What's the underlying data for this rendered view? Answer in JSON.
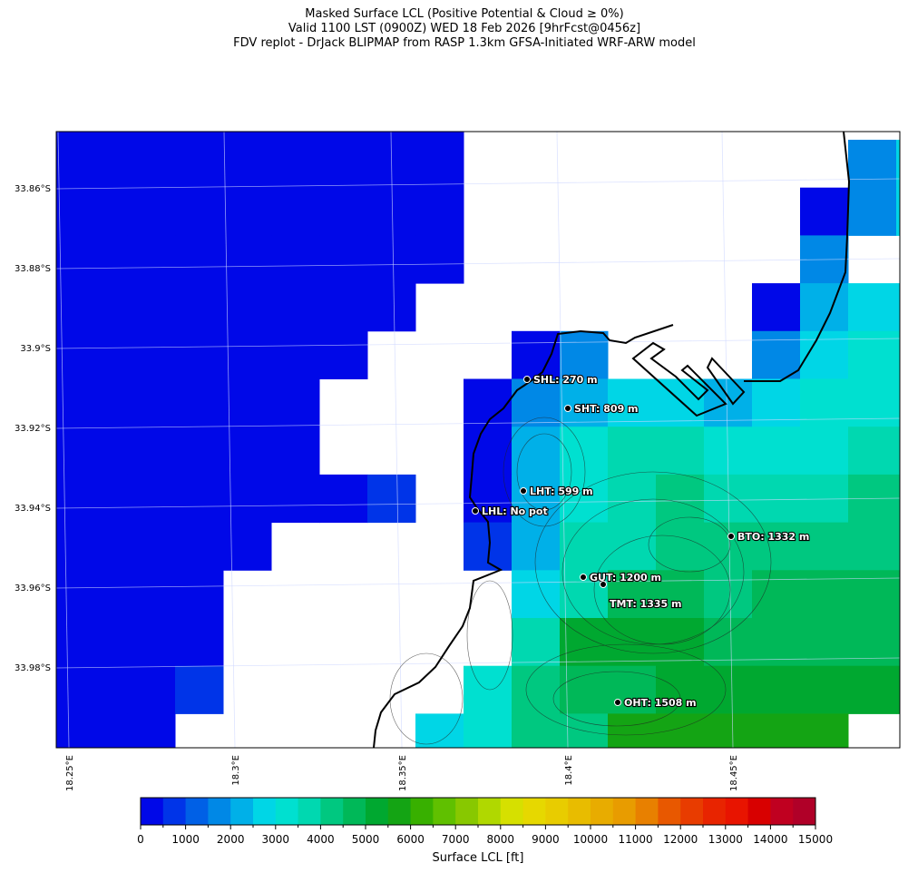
{
  "title": {
    "line1": "Masked Surface LCL (Positive Potential & Cloud ≥ 0%)",
    "line2": "Valid 1100 LST (0900Z) WED 18 Feb 2026 [9hrFcst@0456z]",
    "line3": "FDV replot - DrJack BLIPMAP from RASP 1.3km GFSA-Initiated WRF-ARW model"
  },
  "axes": {
    "lat_ticks": [
      "33.86°S",
      "33.88°S",
      "33.9°S",
      "33.92°S",
      "33.94°S",
      "33.96°S",
      "33.98°S"
    ],
    "lon_ticks": [
      "18.25°E",
      "18.3°E",
      "18.35°E",
      "18.4°E",
      "18.45°E"
    ]
  },
  "stations": [
    {
      "label": "SHL: 270 m"
    },
    {
      "label": "SHT: 809 m"
    },
    {
      "label": "LHT: 599 m"
    },
    {
      "label": "LHL: No pot"
    },
    {
      "label": "BTO: 1332 m"
    },
    {
      "label": "GUT: 1200 m"
    },
    {
      "label": "TMT: 1335 m"
    },
    {
      "label": "OHT: 1508 m"
    }
  ],
  "colorbar": {
    "label": "Surface LCL [ft]",
    "ticks": [
      "0",
      "1000",
      "2000",
      "3000",
      "4000",
      "5000",
      "6000",
      "7000",
      "8000",
      "9000",
      "10000",
      "11000",
      "12000",
      "13000",
      "14000",
      "15000"
    ],
    "range": [
      0,
      15000
    ],
    "step": 500,
    "colors": [
      "#0008e8",
      "#0034e8",
      "#0060e6",
      "#0088e6",
      "#00b0e8",
      "#00d6e6",
      "#00e0d0",
      "#00d8b0",
      "#00c880",
      "#00b858",
      "#00a830",
      "#14a414",
      "#38b000",
      "#60c000",
      "#88c800",
      "#b0d800",
      "#d6e000",
      "#e6d800",
      "#e8cc00",
      "#e8bc00",
      "#e8ac00",
      "#e89c00",
      "#e88000",
      "#e85800",
      "#e83c00",
      "#e82400",
      "#e81400",
      "#d80000",
      "#c00020",
      "#b00028"
    ]
  },
  "chart_data": {
    "type": "heatmap",
    "title": "Masked Surface LCL (Positive Potential & Cloud ≥ 0%)",
    "colorbar_label": "Surface LCL [ft]",
    "value_range": [
      0,
      15000
    ],
    "note_masked": null,
    "grid_values_ft": [
      [
        0,
        0,
        0,
        0,
        0,
        0,
        0,
        0,
        0,
        null,
        null,
        null,
        null,
        null,
        null,
        null,
        null,
        null,
        null
      ],
      [
        0,
        0,
        0,
        0,
        0,
        0,
        0,
        0,
        0,
        null,
        null,
        null,
        null,
        null,
        null,
        null,
        null,
        1500,
        2500
      ],
      [
        0,
        0,
        0,
        0,
        0,
        0,
        0,
        0,
        0,
        null,
        null,
        null,
        null,
        null,
        null,
        null,
        0,
        1500,
        2500
      ],
      [
        0,
        0,
        0,
        0,
        0,
        0,
        0,
        0,
        0,
        null,
        null,
        null,
        null,
        null,
        null,
        null,
        1500,
        null,
        null
      ],
      [
        0,
        0,
        0,
        0,
        0,
        0,
        0,
        0,
        null,
        null,
        null,
        null,
        null,
        null,
        null,
        0,
        2000,
        2500,
        2500
      ],
      [
        0,
        0,
        0,
        0,
        0,
        0,
        0,
        null,
        null,
        null,
        0,
        1500,
        null,
        null,
        null,
        1500,
        2500,
        3000,
        3000
      ],
      [
        0,
        0,
        0,
        0,
        0,
        0,
        null,
        null,
        null,
        0,
        1500,
        2000,
        2500,
        2500,
        2000,
        2500,
        3000,
        3000,
        3000
      ],
      [
        0,
        0,
        0,
        0,
        0,
        0,
        null,
        null,
        null,
        0,
        2000,
        3000,
        3500,
        3500,
        3000,
        3000,
        3000,
        3500,
        3500
      ],
      [
        0,
        0,
        0,
        0,
        0,
        0,
        0,
        500,
        null,
        0,
        2000,
        3000,
        3500,
        4000,
        3500,
        3500,
        3500,
        4000,
        4000
      ],
      [
        0,
        0,
        0,
        0,
        0,
        null,
        null,
        null,
        null,
        500,
        2000,
        3500,
        3500,
        4000,
        4000,
        4000,
        4000,
        4000,
        4000
      ],
      [
        0,
        0,
        0,
        0,
        null,
        null,
        null,
        null,
        null,
        null,
        2500,
        3500,
        4500,
        4500,
        4000,
        4500,
        4500,
        4500,
        4500
      ],
      [
        0,
        0,
        0,
        0,
        null,
        null,
        null,
        null,
        null,
        null,
        3500,
        5000,
        5000,
        5000,
        4500,
        4500,
        4500,
        4500,
        4500
      ],
      [
        0,
        0,
        0,
        500,
        null,
        null,
        null,
        null,
        null,
        3000,
        4000,
        4500,
        4500,
        5000,
        5000,
        5000,
        5000,
        5000,
        5000
      ],
      [
        0,
        0,
        0,
        null,
        null,
        null,
        null,
        null,
        2500,
        3000,
        4000,
        4000,
        5500,
        5500,
        5500,
        5500,
        5500,
        null,
        null
      ]
    ]
  }
}
